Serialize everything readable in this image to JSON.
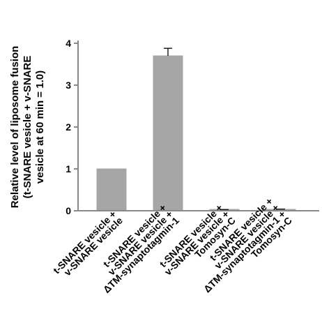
{
  "chart_data": {
    "type": "bar",
    "ylabel_lines": [
      "Relative level of liposome fusion",
      "(t-SNARE vesicle + v-SNARE",
      "vesicle at 60 min = 1.0)"
    ],
    "ylim": [
      0,
      4
    ],
    "yticks": [
      0,
      1,
      2,
      3,
      4
    ],
    "categories": [
      {
        "lines": [
          "t-SNARE vesicle +",
          "v-SNARE vesicle"
        ]
      },
      {
        "lines": [
          "t-SNARE vesicle +",
          "v-SNARE vesicle +",
          "ΔTM-synaptotagmin-1"
        ]
      },
      {
        "lines": [
          "t-SNARE vesicle +",
          "v-SNARE vesicle +",
          "Tomosyn-C"
        ]
      },
      {
        "lines": [
          "t-SNARE vesicle +",
          "v-SNARE vesicle +",
          "ΔTM-synaptotagmin-1 +",
          "Tomosyn-C"
        ]
      }
    ],
    "values": [
      1.0,
      3.7,
      0.02,
      0.03
    ],
    "errors": [
      0,
      0.18,
      0.01,
      0.01
    ],
    "bar_color": "#a6a6a6",
    "grid": false,
    "legend": "none"
  }
}
